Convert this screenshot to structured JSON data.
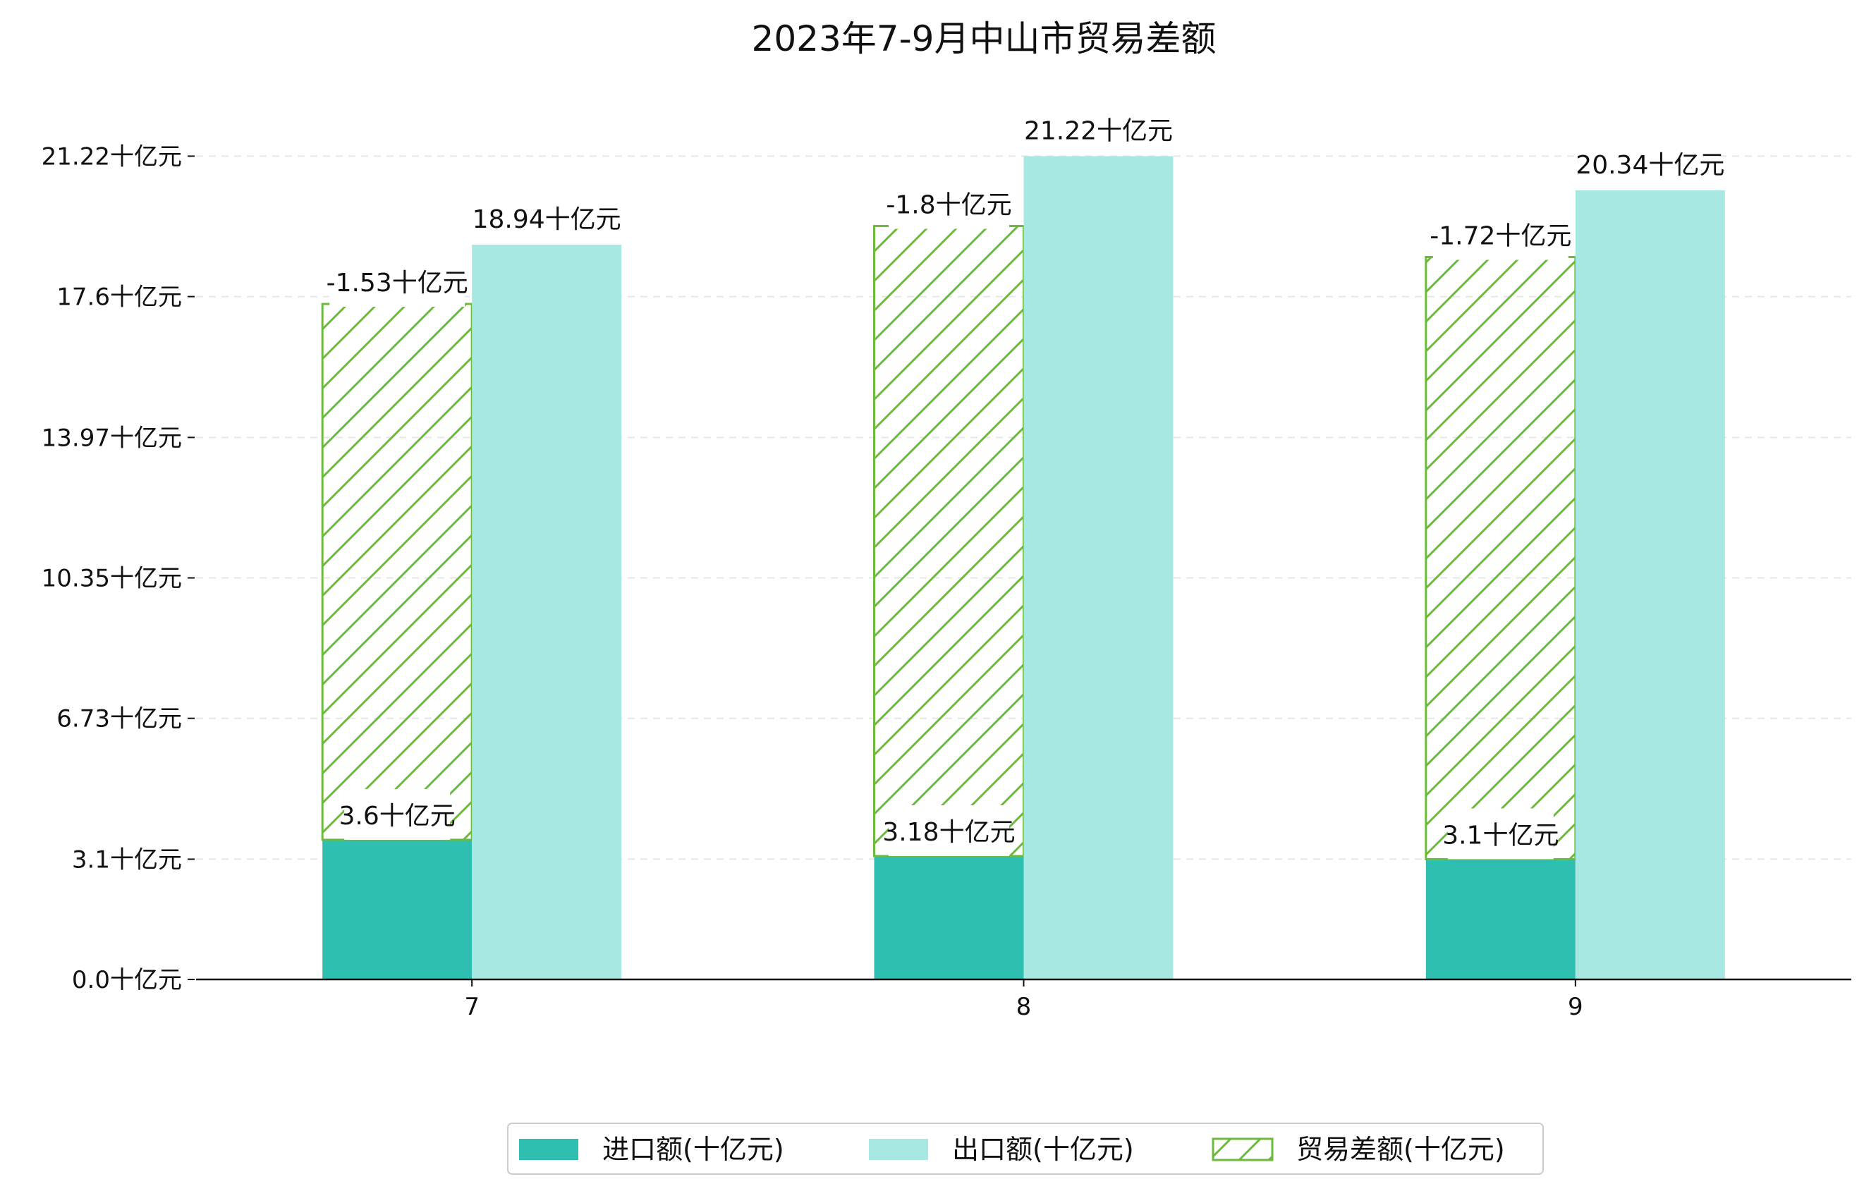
{
  "chart_data": {
    "type": "bar",
    "title": "2023年7-9月中山市贸易差额",
    "categories": [
      "7",
      "8",
      "9"
    ],
    "unit_suffix": "十亿元",
    "yticks": [
      "0.0十亿元",
      "3.1十亿元",
      "6.73十亿元",
      "10.35十亿元",
      "13.97十亿元",
      "17.6十亿元",
      "21.22十亿元"
    ],
    "ytick_values": [
      0.0,
      3.1,
      6.73,
      10.35,
      13.97,
      17.6,
      21.22
    ],
    "ylim": [
      0,
      22.7
    ],
    "grid": true,
    "legend_position": "bottom-center",
    "series": [
      {
        "name": "进口额(十亿元)",
        "values": [
          3.6,
          3.18,
          3.1
        ],
        "labels": [
          "3.6十亿元",
          "3.18十亿元",
          "3.1十亿元"
        ],
        "color": "#2ebfb1"
      },
      {
        "name": "出口额(十亿元)",
        "values": [
          18.94,
          21.22,
          20.34
        ],
        "labels": [
          "18.94十亿元",
          "21.22十亿元",
          "20.34十亿元"
        ],
        "color": "#a8e8e2"
      },
      {
        "name": "贸易差额(十亿元)",
        "values": [
          -1.53,
          -1.8,
          -1.72
        ],
        "labels": [
          "-1.53十亿元",
          "-1.8十亿元",
          "-1.72十亿元"
        ],
        "color": "#6cbb3c",
        "pattern": "hatch"
      }
    ]
  }
}
